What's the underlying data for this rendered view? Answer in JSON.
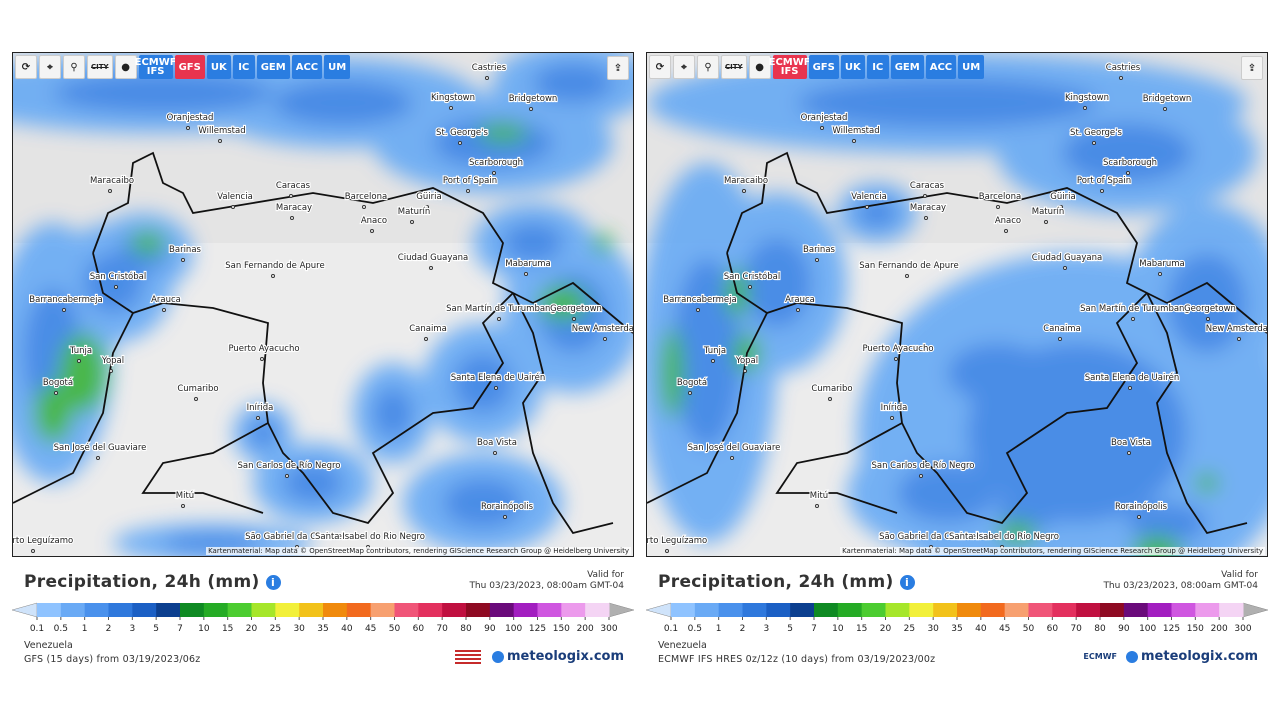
{
  "toolbar": {
    "city": "CITY",
    "models": [
      "ECMWF IFS",
      "GFS",
      "UK",
      "IC",
      "GEM",
      "ACC",
      "UM"
    ]
  },
  "map": {
    "cities": [
      "Castries",
      "Kingstown",
      "Bridgetown",
      "Oranjestad",
      "Willemstad",
      "St. George's",
      "Scarborough",
      "Maracaibo",
      "Port of Spain",
      "Caracas",
      "Valencia",
      "Barcelona",
      "Güiria",
      "Maracay",
      "Maturín",
      "Anaco",
      "Barinas",
      "San Fernando de Apure",
      "Ciudad Guayana",
      "Mabaruma",
      "San Cristóbal",
      "Arauca",
      "Barrancabermeja",
      "San Martín de Turumbang",
      "Georgetown",
      "Canaima",
      "New Amsterdam",
      "Puerto Ayacucho",
      "Tunja",
      "Yopal",
      "Santa Elena de Uairén",
      "Bogotá",
      "Cumaribo",
      "Inírida",
      "Boa Vista",
      "San José del Guaviare",
      "San Carlos de Río Negro",
      "Mitú",
      "Rorainópolis",
      "São Gabriel da Cachoeira",
      "Santa Isabel do Rio Negro",
      "Puerto Leguízamo"
    ],
    "attribution": "Kartenmaterial: Map data © OpenStreetMap contributors, rendering GIScience Research Group @ Heidelberg University"
  },
  "legend": {
    "title": "Precipitation, 24h (mm)",
    "valid_label": "Valid for",
    "valid_time": "Thu 03/23/2023, 08:00am GMT-04",
    "labels": [
      "0.1",
      "0.5",
      "1",
      "2",
      "3",
      "5",
      "7",
      "10",
      "15",
      "20",
      "25",
      "30",
      "35",
      "40",
      "45",
      "50",
      "60",
      "70",
      "80",
      "90",
      "100",
      "125",
      "150",
      "200",
      "300"
    ],
    "colors": [
      "#8fc3ff",
      "#6aaaf5",
      "#4a91ec",
      "#2f78dc",
      "#1b5fc4",
      "#0c3f8f",
      "#0f8a23",
      "#25ab25",
      "#4ccc30",
      "#a6e62a",
      "#f2f03a",
      "#f2c21a",
      "#f08a0c",
      "#f26a1e",
      "#f7a070",
      "#f05578",
      "#e3305e",
      "#c01040",
      "#8e0a22",
      "#6a0a7a",
      "#a21ec0",
      "#cf56e0",
      "#ec9aec",
      "#f4d4f4"
    ]
  },
  "panels": [
    {
      "active_model": "GFS",
      "region": "Venezuela",
      "source": "GFS (15 days) from 03/19/2023/06z"
    },
    {
      "active_model": "ECMWF IFS",
      "region": "Venezuela",
      "source": "ECMWF IFS HRES 0z/12z (10 days) from 03/19/2023/00z",
      "logo": "ECMWF"
    }
  ],
  "brand": "meteologix.com"
}
